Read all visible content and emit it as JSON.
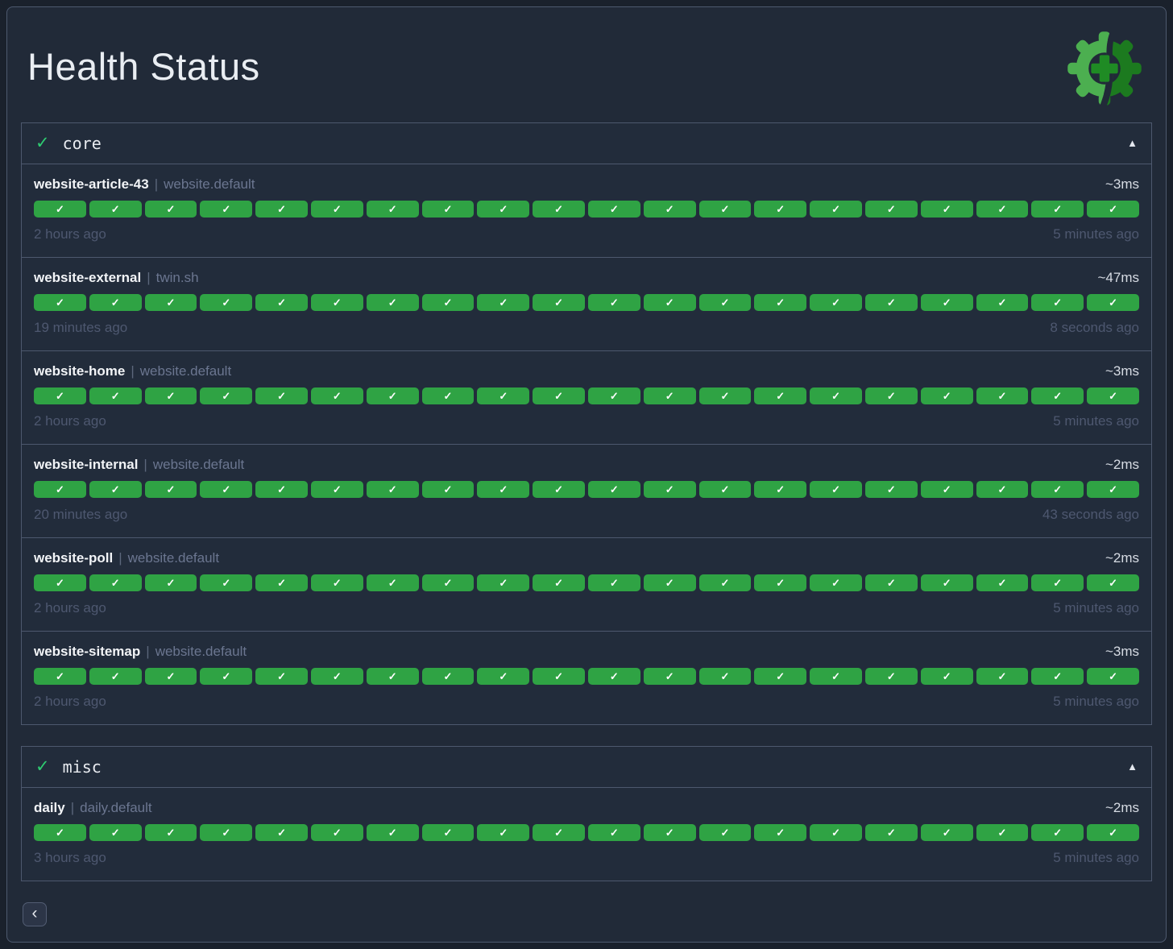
{
  "page": {
    "title": "Health Status"
  },
  "icons": {
    "group_check": "✓",
    "collapse_arrow": "▲",
    "separator": "|",
    "pill_check": "✓",
    "back_chevron": "‹"
  },
  "colors": {
    "pill_ok_green": "#2fa344",
    "group_check_green": "#2ecc71",
    "logo_light_green": "#4caf50",
    "logo_dark_green": "#1c7a1f",
    "logo_plus_green": "#1f8b24",
    "card_background": "#212a38",
    "border_slate": "#4d586e"
  },
  "groups": [
    {
      "name": "core",
      "checks": [
        {
          "name": "website-article-43",
          "suffix": "website.default",
          "latency": "~3ms",
          "oldest": "2 hours ago",
          "newest": "5 minutes ago",
          "segments": 20
        },
        {
          "name": "website-external",
          "suffix": "twin.sh",
          "latency": "~47ms",
          "oldest": "19 minutes ago",
          "newest": "8 seconds ago",
          "segments": 20
        },
        {
          "name": "website-home",
          "suffix": "website.default",
          "latency": "~3ms",
          "oldest": "2 hours ago",
          "newest": "5 minutes ago",
          "segments": 20
        },
        {
          "name": "website-internal",
          "suffix": "website.default",
          "latency": "~2ms",
          "oldest": "20 minutes ago",
          "newest": "43 seconds ago",
          "segments": 20
        },
        {
          "name": "website-poll",
          "suffix": "website.default",
          "latency": "~2ms",
          "oldest": "2 hours ago",
          "newest": "5 minutes ago",
          "segments": 20
        },
        {
          "name": "website-sitemap",
          "suffix": "website.default",
          "latency": "~3ms",
          "oldest": "2 hours ago",
          "newest": "5 minutes ago",
          "segments": 20
        }
      ]
    },
    {
      "name": "misc",
      "checks": [
        {
          "name": "daily",
          "suffix": "daily.default",
          "latency": "~2ms",
          "oldest": "3 hours ago",
          "newest": "5 minutes ago",
          "segments": 20
        }
      ]
    }
  ],
  "footer": {
    "back_button": "‹"
  }
}
